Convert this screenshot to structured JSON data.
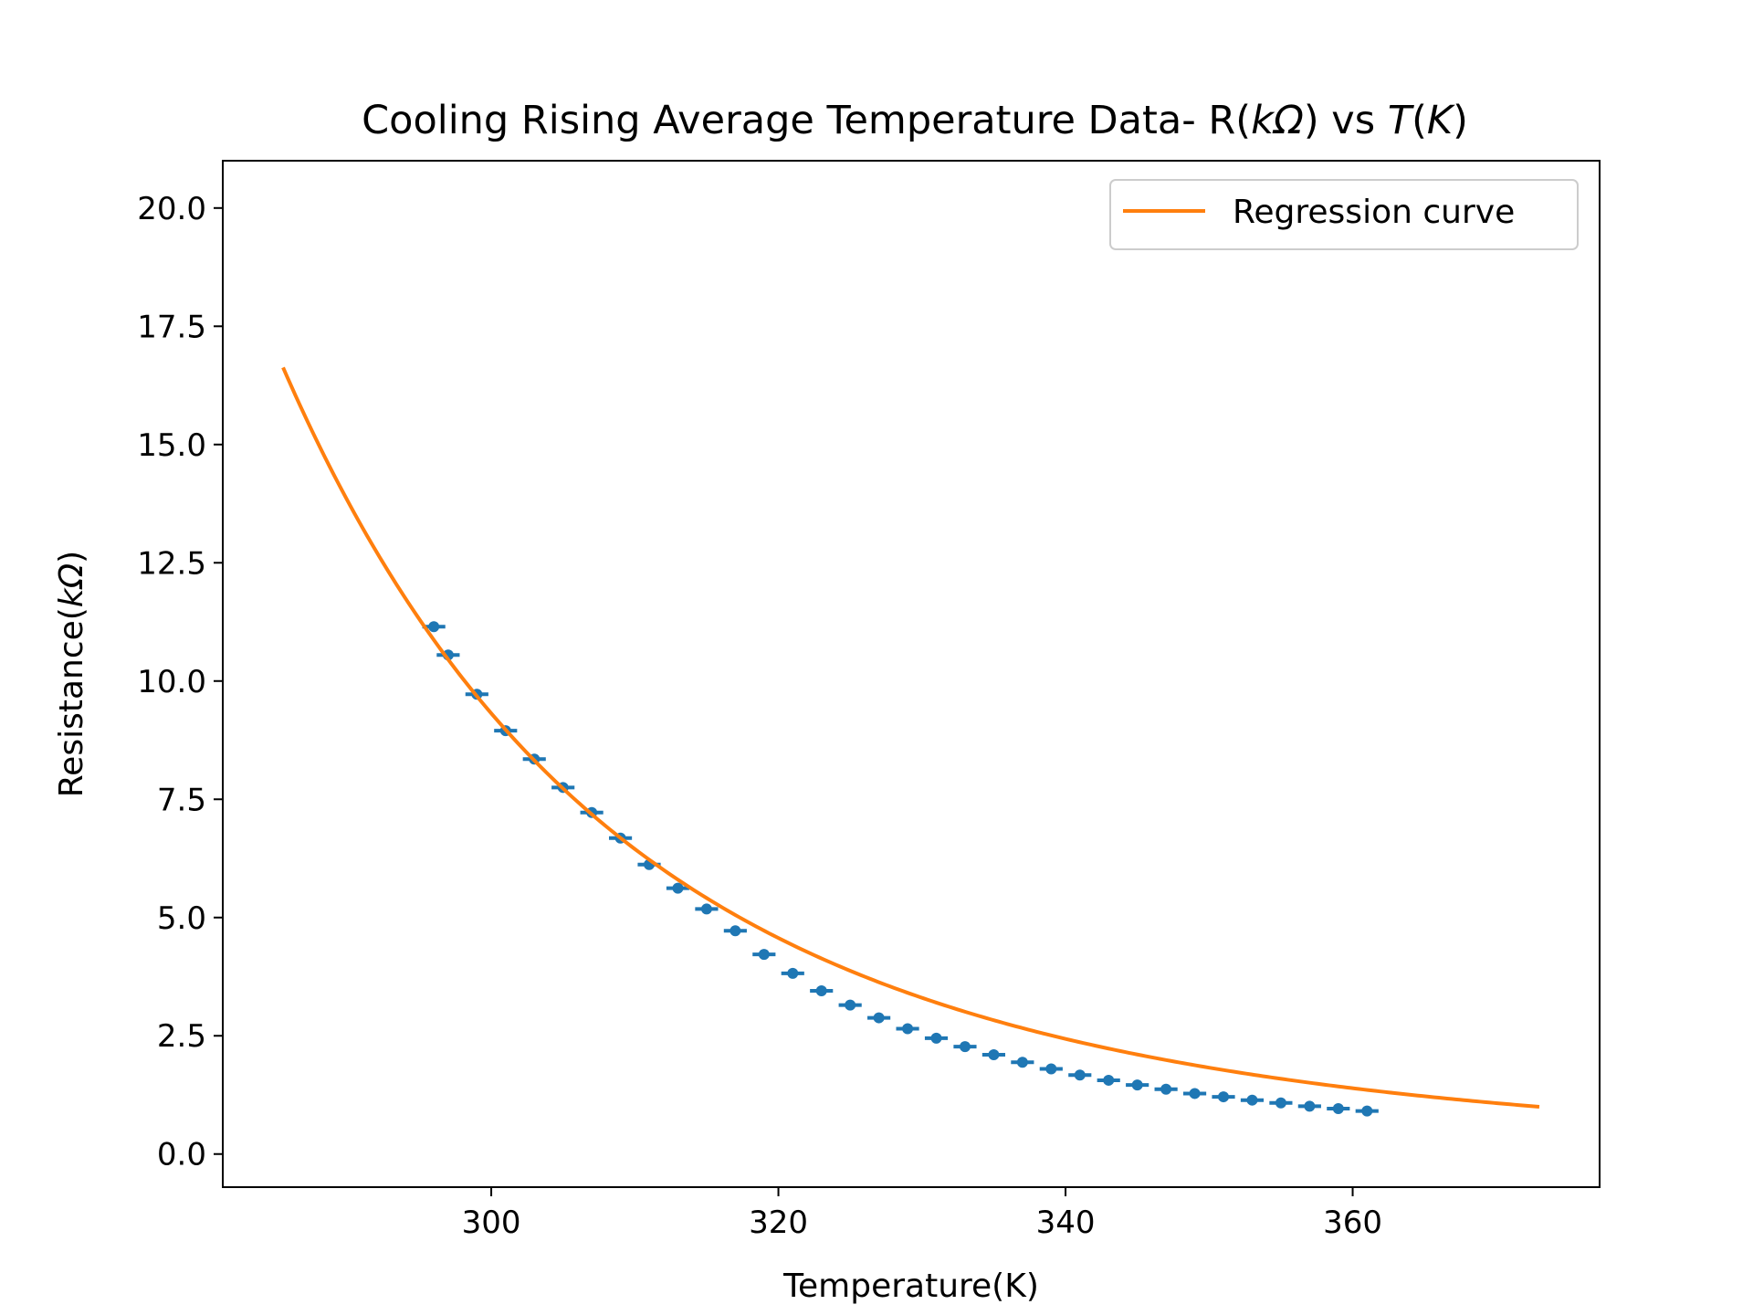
{
  "chart_data": {
    "type": "scatter",
    "title": "Cooling Rising Average Temperature Data- R(kΩ) vs T(K)",
    "title_parts": {
      "prefix": "Cooling Rising Average Temperature Data- R(",
      "r_unit_symbol": "kΩ",
      "middle": ") vs ",
      "t_symbol": "T",
      "open_paren": "(",
      "k_symbol": "K",
      "close_paren": ")"
    },
    "xlabel": "Temperature(K)",
    "ylabel": "Resistance(kΩ)",
    "ylabel_parts": {
      "prefix": "Resistance(",
      "symbol": "kΩ",
      "suffix": ")"
    },
    "xlim": [
      281.3,
      377.2
    ],
    "ylim": [
      -0.7,
      21.0
    ],
    "xticks": [
      300,
      320,
      340,
      360
    ],
    "yticks": [
      0.0,
      2.5,
      5.0,
      7.5,
      10.0,
      12.5,
      15.0,
      17.5,
      20.0
    ],
    "grid": false,
    "legend": {
      "placement": "top-right",
      "entries": [
        "Regression curve"
      ]
    },
    "colors": {
      "data": "#1f77b4",
      "curve": "#ff7f0e"
    },
    "series": [
      {
        "kind": "errorbar",
        "xerr": 0.8,
        "points": [
          [
            296,
            11.15
          ],
          [
            297,
            10.55
          ],
          [
            299,
            9.72
          ],
          [
            301,
            8.95
          ],
          [
            303,
            8.35
          ],
          [
            305,
            7.75
          ],
          [
            307,
            7.22
          ],
          [
            309,
            6.68
          ],
          [
            311,
            6.12
          ],
          [
            313,
            5.62
          ],
          [
            315,
            5.18
          ],
          [
            317,
            4.72
          ],
          [
            319,
            4.22
          ],
          [
            321,
            3.82
          ],
          [
            323,
            3.45
          ],
          [
            325,
            3.15
          ],
          [
            327,
            2.88
          ],
          [
            329,
            2.65
          ],
          [
            331,
            2.45
          ],
          [
            333,
            2.27
          ],
          [
            335,
            2.1
          ],
          [
            337,
            1.94
          ],
          [
            339,
            1.8
          ],
          [
            341,
            1.67
          ],
          [
            343,
            1.56
          ],
          [
            345,
            1.46
          ],
          [
            347,
            1.37
          ],
          [
            349,
            1.28
          ],
          [
            351,
            1.21
          ],
          [
            353,
            1.14
          ],
          [
            355,
            1.08
          ],
          [
            357,
            1.01
          ],
          [
            359,
            0.96
          ],
          [
            361,
            0.91
          ]
        ]
      },
      {
        "name": "Regression curve",
        "kind": "line",
        "x_range": [
          285.5,
          373.0
        ],
        "model": {
          "r0": 10.0,
          "t0": 298.15,
          "beta": 3422
        }
      }
    ]
  }
}
